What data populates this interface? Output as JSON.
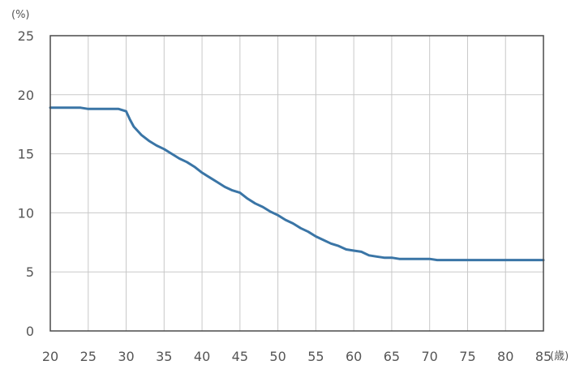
{
  "chart_data": {
    "type": "line",
    "y_unit_label": "(%)",
    "x_unit_label": "(歳)",
    "xlim": [
      20,
      85
    ],
    "ylim": [
      0,
      25
    ],
    "x_ticks": [
      "20",
      "25",
      "30",
      "35",
      "40",
      "45",
      "50",
      "55",
      "60",
      "65",
      "70",
      "75",
      "80",
      "85"
    ],
    "y_ticks": [
      "0",
      "5",
      "10",
      "15",
      "20",
      "25"
    ],
    "grid": true,
    "series": [
      {
        "color": "#3a75a6",
        "x": [
          20,
          22,
          24,
          25,
          27,
          29,
          30,
          30.5,
          31,
          32,
          33,
          34,
          35,
          36,
          37,
          38,
          39,
          40,
          41,
          42,
          43,
          44,
          45,
          46,
          47,
          48,
          49,
          50,
          51,
          52,
          53,
          54,
          55,
          56,
          57,
          58,
          59,
          60,
          61,
          62,
          63,
          64,
          65,
          66,
          67,
          68,
          69,
          70,
          71,
          72,
          75,
          80,
          85
        ],
        "y": [
          18.9,
          18.9,
          18.9,
          18.8,
          18.8,
          18.8,
          18.6,
          17.9,
          17.3,
          16.6,
          16.1,
          15.7,
          15.4,
          15.0,
          14.6,
          14.3,
          13.9,
          13.4,
          13.0,
          12.6,
          12.2,
          11.9,
          11.7,
          11.2,
          10.8,
          10.5,
          10.1,
          9.8,
          9.4,
          9.1,
          8.7,
          8.4,
          8.0,
          7.7,
          7.4,
          7.2,
          6.9,
          6.8,
          6.7,
          6.4,
          6.3,
          6.2,
          6.2,
          6.1,
          6.1,
          6.1,
          6.1,
          6.1,
          6.0,
          6.0,
          6.0,
          6.0,
          6.0
        ]
      }
    ]
  }
}
